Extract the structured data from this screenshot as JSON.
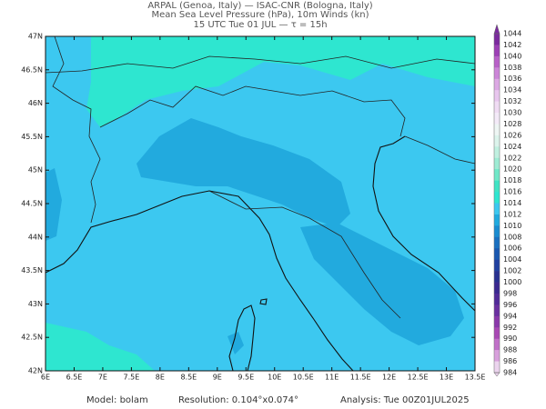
{
  "header": {
    "lines": [
      "ARPAL (Genoa, Italy)  —  ISAC-CNR (Bologna, Italy)",
      "Mean Sea Level Pressure (hPa), 10m Winds (kn)",
      "15 UTC Tue 01 JUL  —  τ = 15h"
    ]
  },
  "map": {
    "lon_range": [
      6,
      13.5
    ],
    "lat_range": [
      42,
      47
    ],
    "lon_ticks": [
      {
        "value": 6,
        "label": "6E"
      },
      {
        "value": 6.5,
        "label": "6.5E"
      },
      {
        "value": 7,
        "label": "7E"
      },
      {
        "value": 7.5,
        "label": "7.5E"
      },
      {
        "value": 8,
        "label": "8E"
      },
      {
        "value": 8.5,
        "label": "8.5E"
      },
      {
        "value": 9,
        "label": "9E"
      },
      {
        "value": 9.5,
        "label": "9.5E"
      },
      {
        "value": 10,
        "label": "10E"
      },
      {
        "value": 10.5,
        "label": "10.5E"
      },
      {
        "value": 11,
        "label": "11E"
      },
      {
        "value": 11.5,
        "label": "11.5E"
      },
      {
        "value": 12,
        "label": "12E"
      },
      {
        "value": 12.5,
        "label": "12.5E"
      },
      {
        "value": 13,
        "label": "13E"
      },
      {
        "value": 13.5,
        "label": "13.5E"
      }
    ],
    "lat_ticks": [
      {
        "value": 47,
        "label": "47N"
      },
      {
        "value": 46.5,
        "label": "46.5N"
      },
      {
        "value": 46,
        "label": "46N"
      },
      {
        "value": 45.5,
        "label": "45.5N"
      },
      {
        "value": 45,
        "label": "45N"
      },
      {
        "value": 44.5,
        "label": "44.5N"
      },
      {
        "value": 44,
        "label": "44N"
      },
      {
        "value": 43.5,
        "label": "43.5N"
      },
      {
        "value": 43,
        "label": "43N"
      },
      {
        "value": 42.5,
        "label": "42.5N"
      },
      {
        "value": 42,
        "label": "42N"
      }
    ]
  },
  "colorbar": {
    "levels": [
      1044,
      1042,
      1040,
      1038,
      1036,
      1034,
      1032,
      1030,
      1028,
      1026,
      1024,
      1022,
      1020,
      1018,
      1016,
      1014,
      1012,
      1010,
      1008,
      1006,
      1004,
      1002,
      1000,
      998,
      996,
      994,
      992,
      990,
      988,
      986,
      984
    ],
    "colors": [
      "#7b2a9e",
      "#9c3fb5",
      "#b860c8",
      "#cc85d8",
      "#dca8e4",
      "#e8c6ee",
      "#f0dcf4",
      "#f4eaf8",
      "#eef6f4",
      "#dcf4ec",
      "#c0f0e0",
      "#9eecd4",
      "#70e8c8",
      "#40e4c4",
      "#2ee6d0",
      "#3cc8f0",
      "#20aadf",
      "#1a8cd0",
      "#1a70c0",
      "#1a58b0",
      "#2040a0",
      "#283090",
      "#3a2890",
      "#502a98",
      "#6a30a0",
      "#8a38aa",
      "#a848b4",
      "#c070c8",
      "#d8a0dc",
      "#ecd4ee"
    ]
  },
  "footer": {
    "model": "Model: bolam",
    "resolution": "Resolution: 0.104°x0.074°",
    "analysis": "Analysis: Tue 00Z01JUL2025"
  }
}
